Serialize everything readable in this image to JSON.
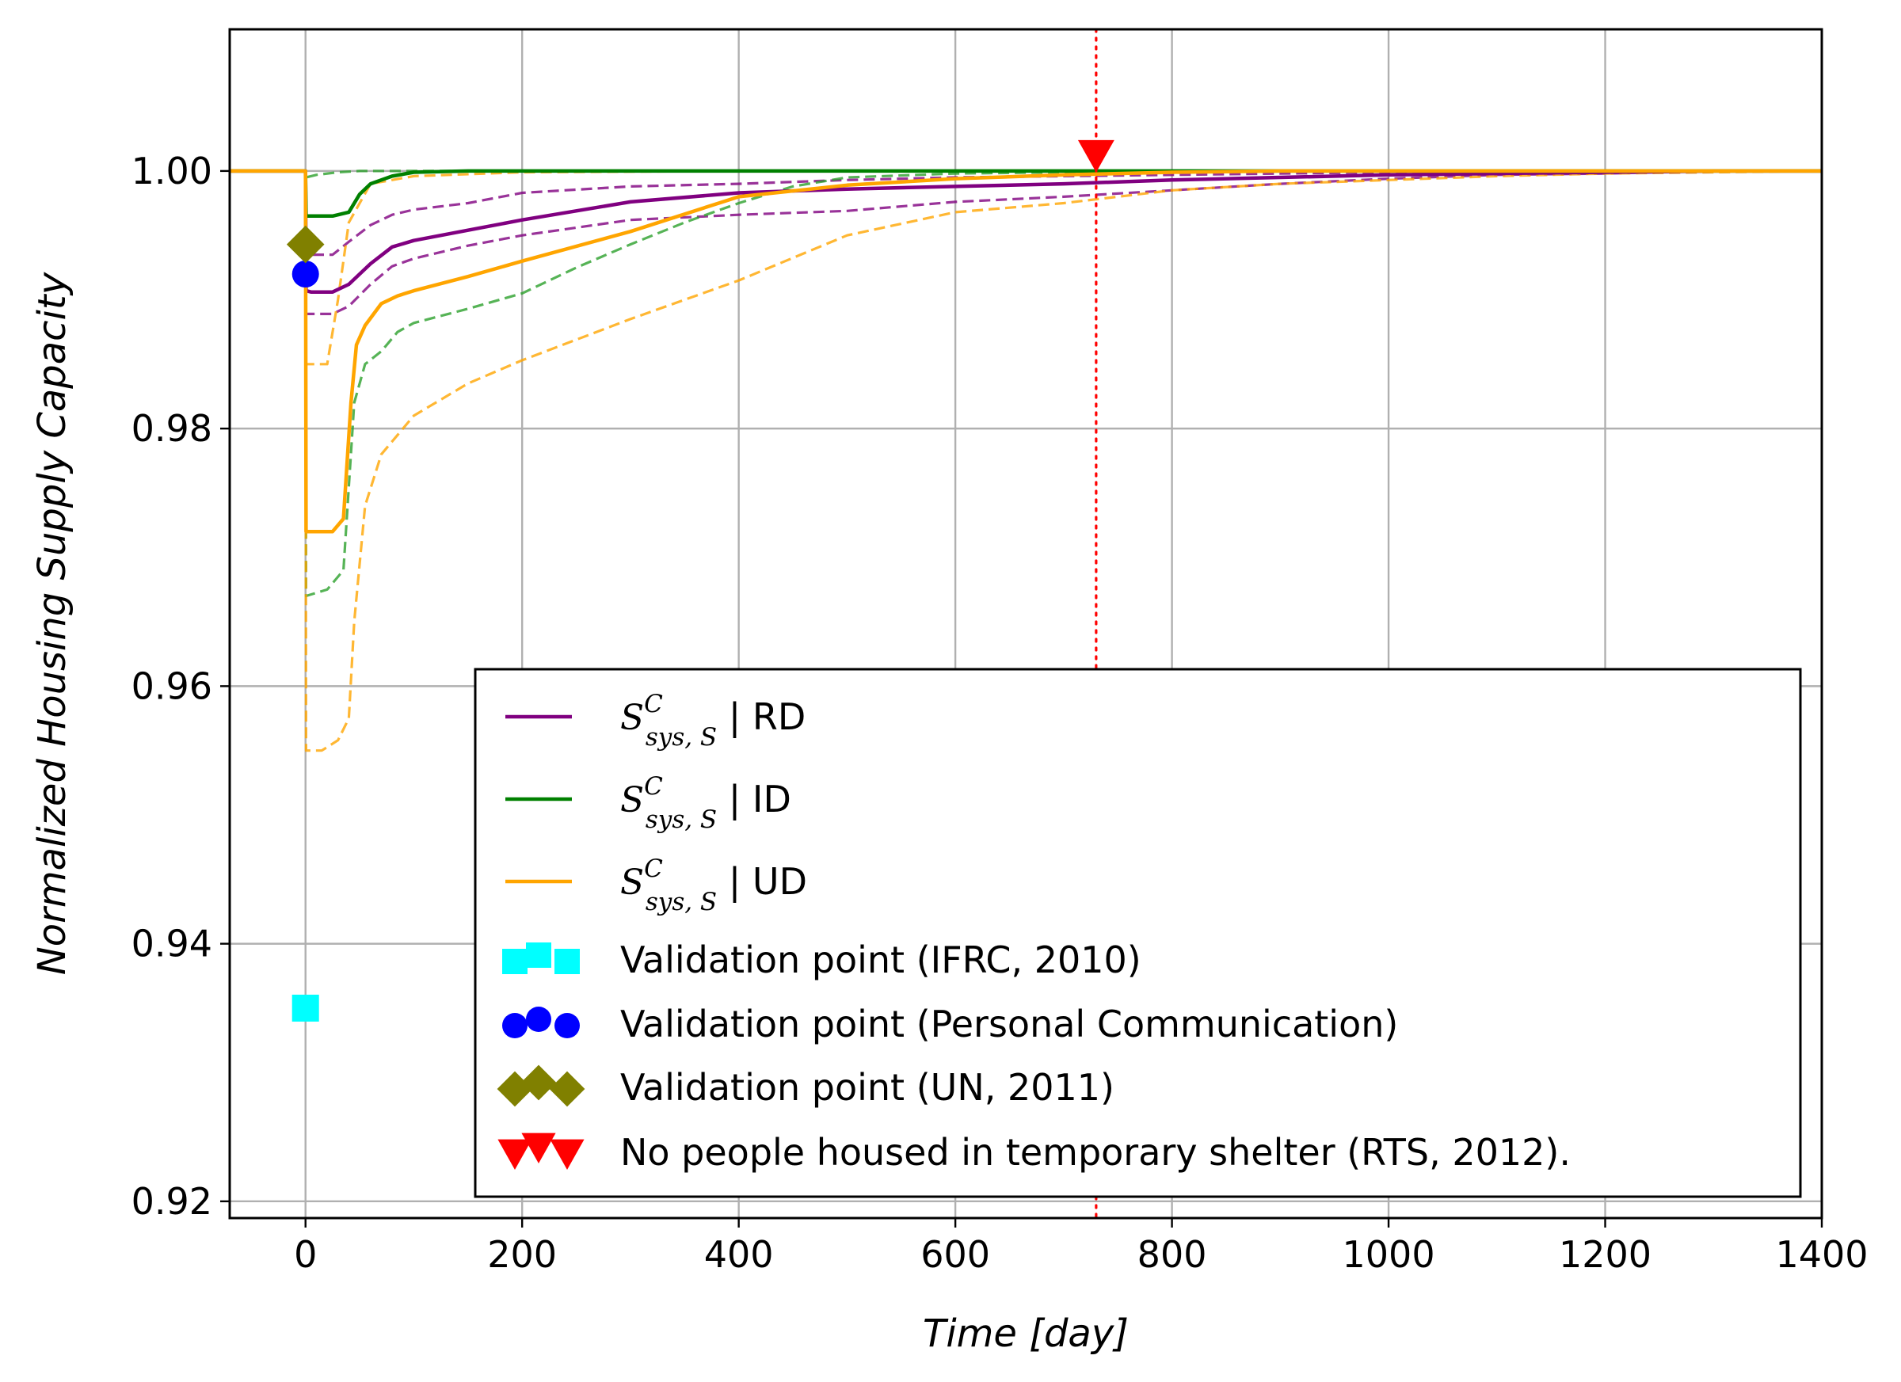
{
  "chart_data": {
    "type": "line",
    "xlabel": "Time [day]",
    "ylabel": "Normalized Housing Supply Capacity",
    "xlim": [
      -70,
      1400
    ],
    "ylim": [
      0.9187,
      1.011
    ],
    "xticks": [
      0,
      200,
      400,
      600,
      800,
      1000,
      1200,
      1400
    ],
    "xtick_labels": [
      "0",
      "200",
      "400",
      "600",
      "800",
      "1000",
      "1200",
      "1400"
    ],
    "yticks": [
      0.92,
      0.94,
      0.96,
      0.98,
      1.0
    ],
    "ytick_labels": [
      "0.92",
      "0.94",
      "0.96",
      "0.98",
      "1.00"
    ],
    "grid": true,
    "legend_position": "lower-right",
    "series": [
      {
        "name": "RD",
        "legend_symbol": "S",
        "legend_superscript": "C",
        "legend_subscript": "sys, S",
        "legend_suffix": " | RD",
        "color": "#800080",
        "style": "solid",
        "x": [
          -70,
          0,
          0.5,
          5,
          25,
          40,
          60,
          80,
          100,
          150,
          200,
          300,
          400,
          500,
          600,
          700,
          800,
          900,
          1000,
          1100,
          1200,
          1300,
          1400
        ],
        "y": [
          1.0,
          1.0,
          0.9907,
          0.9906,
          0.9906,
          0.9912,
          0.9928,
          0.9941,
          0.9946,
          0.9954,
          0.9962,
          0.9976,
          0.9983,
          0.9986,
          0.9988,
          0.999,
          0.9993,
          0.9995,
          0.9997,
          0.9998,
          0.9999,
          1.0,
          1.0
        ]
      },
      {
        "name": "RD upper bound",
        "color": "#800080",
        "style": "dashed",
        "x": [
          -70,
          0,
          0.5,
          25,
          40,
          60,
          80,
          100,
          150,
          200,
          300,
          400,
          500,
          600,
          800,
          1000,
          1200,
          1400
        ],
        "y": [
          1.0,
          1.0,
          0.9935,
          0.9935,
          0.9945,
          0.9958,
          0.9966,
          0.997,
          0.9975,
          0.9983,
          0.9988,
          0.999,
          0.9993,
          0.9995,
          0.9997,
          0.9999,
          1.0,
          1.0
        ]
      },
      {
        "name": "RD lower bound",
        "color": "#800080",
        "style": "dashed",
        "x": [
          -70,
          0,
          0.5,
          25,
          40,
          60,
          80,
          100,
          150,
          200,
          300,
          400,
          500,
          600,
          700,
          800,
          900,
          1000,
          1100,
          1200,
          1300,
          1400
        ],
        "y": [
          1.0,
          1.0,
          0.9889,
          0.9889,
          0.9895,
          0.9912,
          0.9926,
          0.9932,
          0.9942,
          0.995,
          0.9962,
          0.9966,
          0.9969,
          0.9976,
          0.998,
          0.9985,
          0.999,
          0.9994,
          0.9997,
          0.9998,
          1.0,
          1.0
        ]
      },
      {
        "name": "ID",
        "legend_symbol": "S",
        "legend_superscript": "C",
        "legend_subscript": "sys, S",
        "legend_suffix": " | ID",
        "color": "#008000",
        "style": "solid",
        "x": [
          -70,
          0,
          0.5,
          25,
          40,
          50,
          60,
          80,
          100,
          150,
          200,
          400,
          1400
        ],
        "y": [
          1.0,
          1.0,
          0.9965,
          0.9965,
          0.9968,
          0.9982,
          0.999,
          0.9996,
          0.9999,
          1.0,
          1.0,
          1.0,
          1.0
        ]
      },
      {
        "name": "ID upper bound",
        "color": "#2ca02c",
        "style": "dashed",
        "x": [
          -70,
          0,
          0.5,
          10,
          30,
          50,
          80,
          1400
        ],
        "y": [
          1.0,
          1.0,
          0.9995,
          0.9997,
          0.9999,
          1.0,
          1.0,
          1.0
        ]
      },
      {
        "name": "ID lower bound",
        "color": "#2ca02c",
        "style": "dashed",
        "x": [
          -70,
          0,
          0.5,
          20,
          35,
          45,
          55,
          70,
          85,
          100,
          150,
          200,
          250,
          300,
          350,
          400,
          450,
          500,
          600,
          700,
          800,
          1400
        ],
        "y": [
          1.0,
          1.0,
          0.967,
          0.9675,
          0.969,
          0.982,
          0.985,
          0.986,
          0.9875,
          0.9882,
          0.9893,
          0.9905,
          0.9925,
          0.9943,
          0.996,
          0.9975,
          0.9988,
          0.9995,
          0.9998,
          0.9999,
          1.0,
          1.0
        ]
      },
      {
        "name": "UD",
        "legend_symbol": "S",
        "legend_superscript": "C",
        "legend_subscript": "sys, S",
        "legend_suffix": " | UD",
        "color": "#ffa500",
        "style": "solid",
        "x": [
          -70,
          0,
          0.5,
          25,
          35,
          42,
          47,
          55,
          70,
          85,
          100,
          150,
          200,
          300,
          400,
          500,
          600,
          700,
          800,
          900,
          1000,
          1100,
          1200,
          1300,
          1400
        ],
        "y": [
          1.0,
          1.0,
          0.972,
          0.972,
          0.973,
          0.982,
          0.9865,
          0.988,
          0.9897,
          0.9903,
          0.9907,
          0.9918,
          0.993,
          0.9953,
          0.998,
          0.9989,
          0.9994,
          0.9997,
          0.9999,
          1.0,
          1.0,
          1.0,
          1.0,
          1.0,
          1.0
        ]
      },
      {
        "name": "UD upper bound",
        "color": "#ffa500",
        "style": "dashed",
        "x": [
          -70,
          0,
          0.5,
          20,
          30,
          40,
          60,
          100,
          200,
          400,
          600,
          800,
          1000,
          1400
        ],
        "y": [
          1.0,
          1.0,
          0.985,
          0.985,
          0.99,
          0.996,
          0.999,
          0.9996,
          0.9999,
          1.0,
          1.0,
          1.0,
          1.0,
          1.0
        ]
      },
      {
        "name": "UD lower bound",
        "color": "#ffa500",
        "style": "dashed",
        "x": [
          -70,
          0,
          0.5,
          15,
          30,
          40,
          45,
          55,
          70,
          85,
          100,
          150,
          200,
          300,
          400,
          500,
          600,
          700,
          800,
          900,
          1000,
          1100,
          1200,
          1300,
          1400
        ],
        "y": [
          1.0,
          1.0,
          0.955,
          0.955,
          0.9558,
          0.9575,
          0.965,
          0.974,
          0.978,
          0.9795,
          0.981,
          0.9835,
          0.9853,
          0.9885,
          0.9915,
          0.995,
          0.9968,
          0.9975,
          0.9985,
          0.999,
          0.9993,
          0.9996,
          0.9998,
          0.9999,
          1.0
        ]
      }
    ],
    "points": [
      {
        "name": "Validation point (IFRC, 2010)",
        "marker": "square",
        "color": "#00ffff",
        "x": 0,
        "y": 0.935
      },
      {
        "name": "Validation point (Personal Communication)",
        "marker": "circle",
        "color": "#0000ff",
        "x": 0,
        "y": 0.992
      },
      {
        "name": "Validation point (UN, 2011)",
        "marker": "diamond",
        "color": "#808000",
        "x": 0,
        "y": 0.9943
      },
      {
        "name": "No people housed in temporary shelter (RTS, 2012).",
        "marker": "triangle-down",
        "color": "#ff0000",
        "x": 730,
        "y": 1.0012
      }
    ],
    "vline": {
      "x": 730,
      "color": "#ff0000",
      "style": "dotted"
    }
  }
}
